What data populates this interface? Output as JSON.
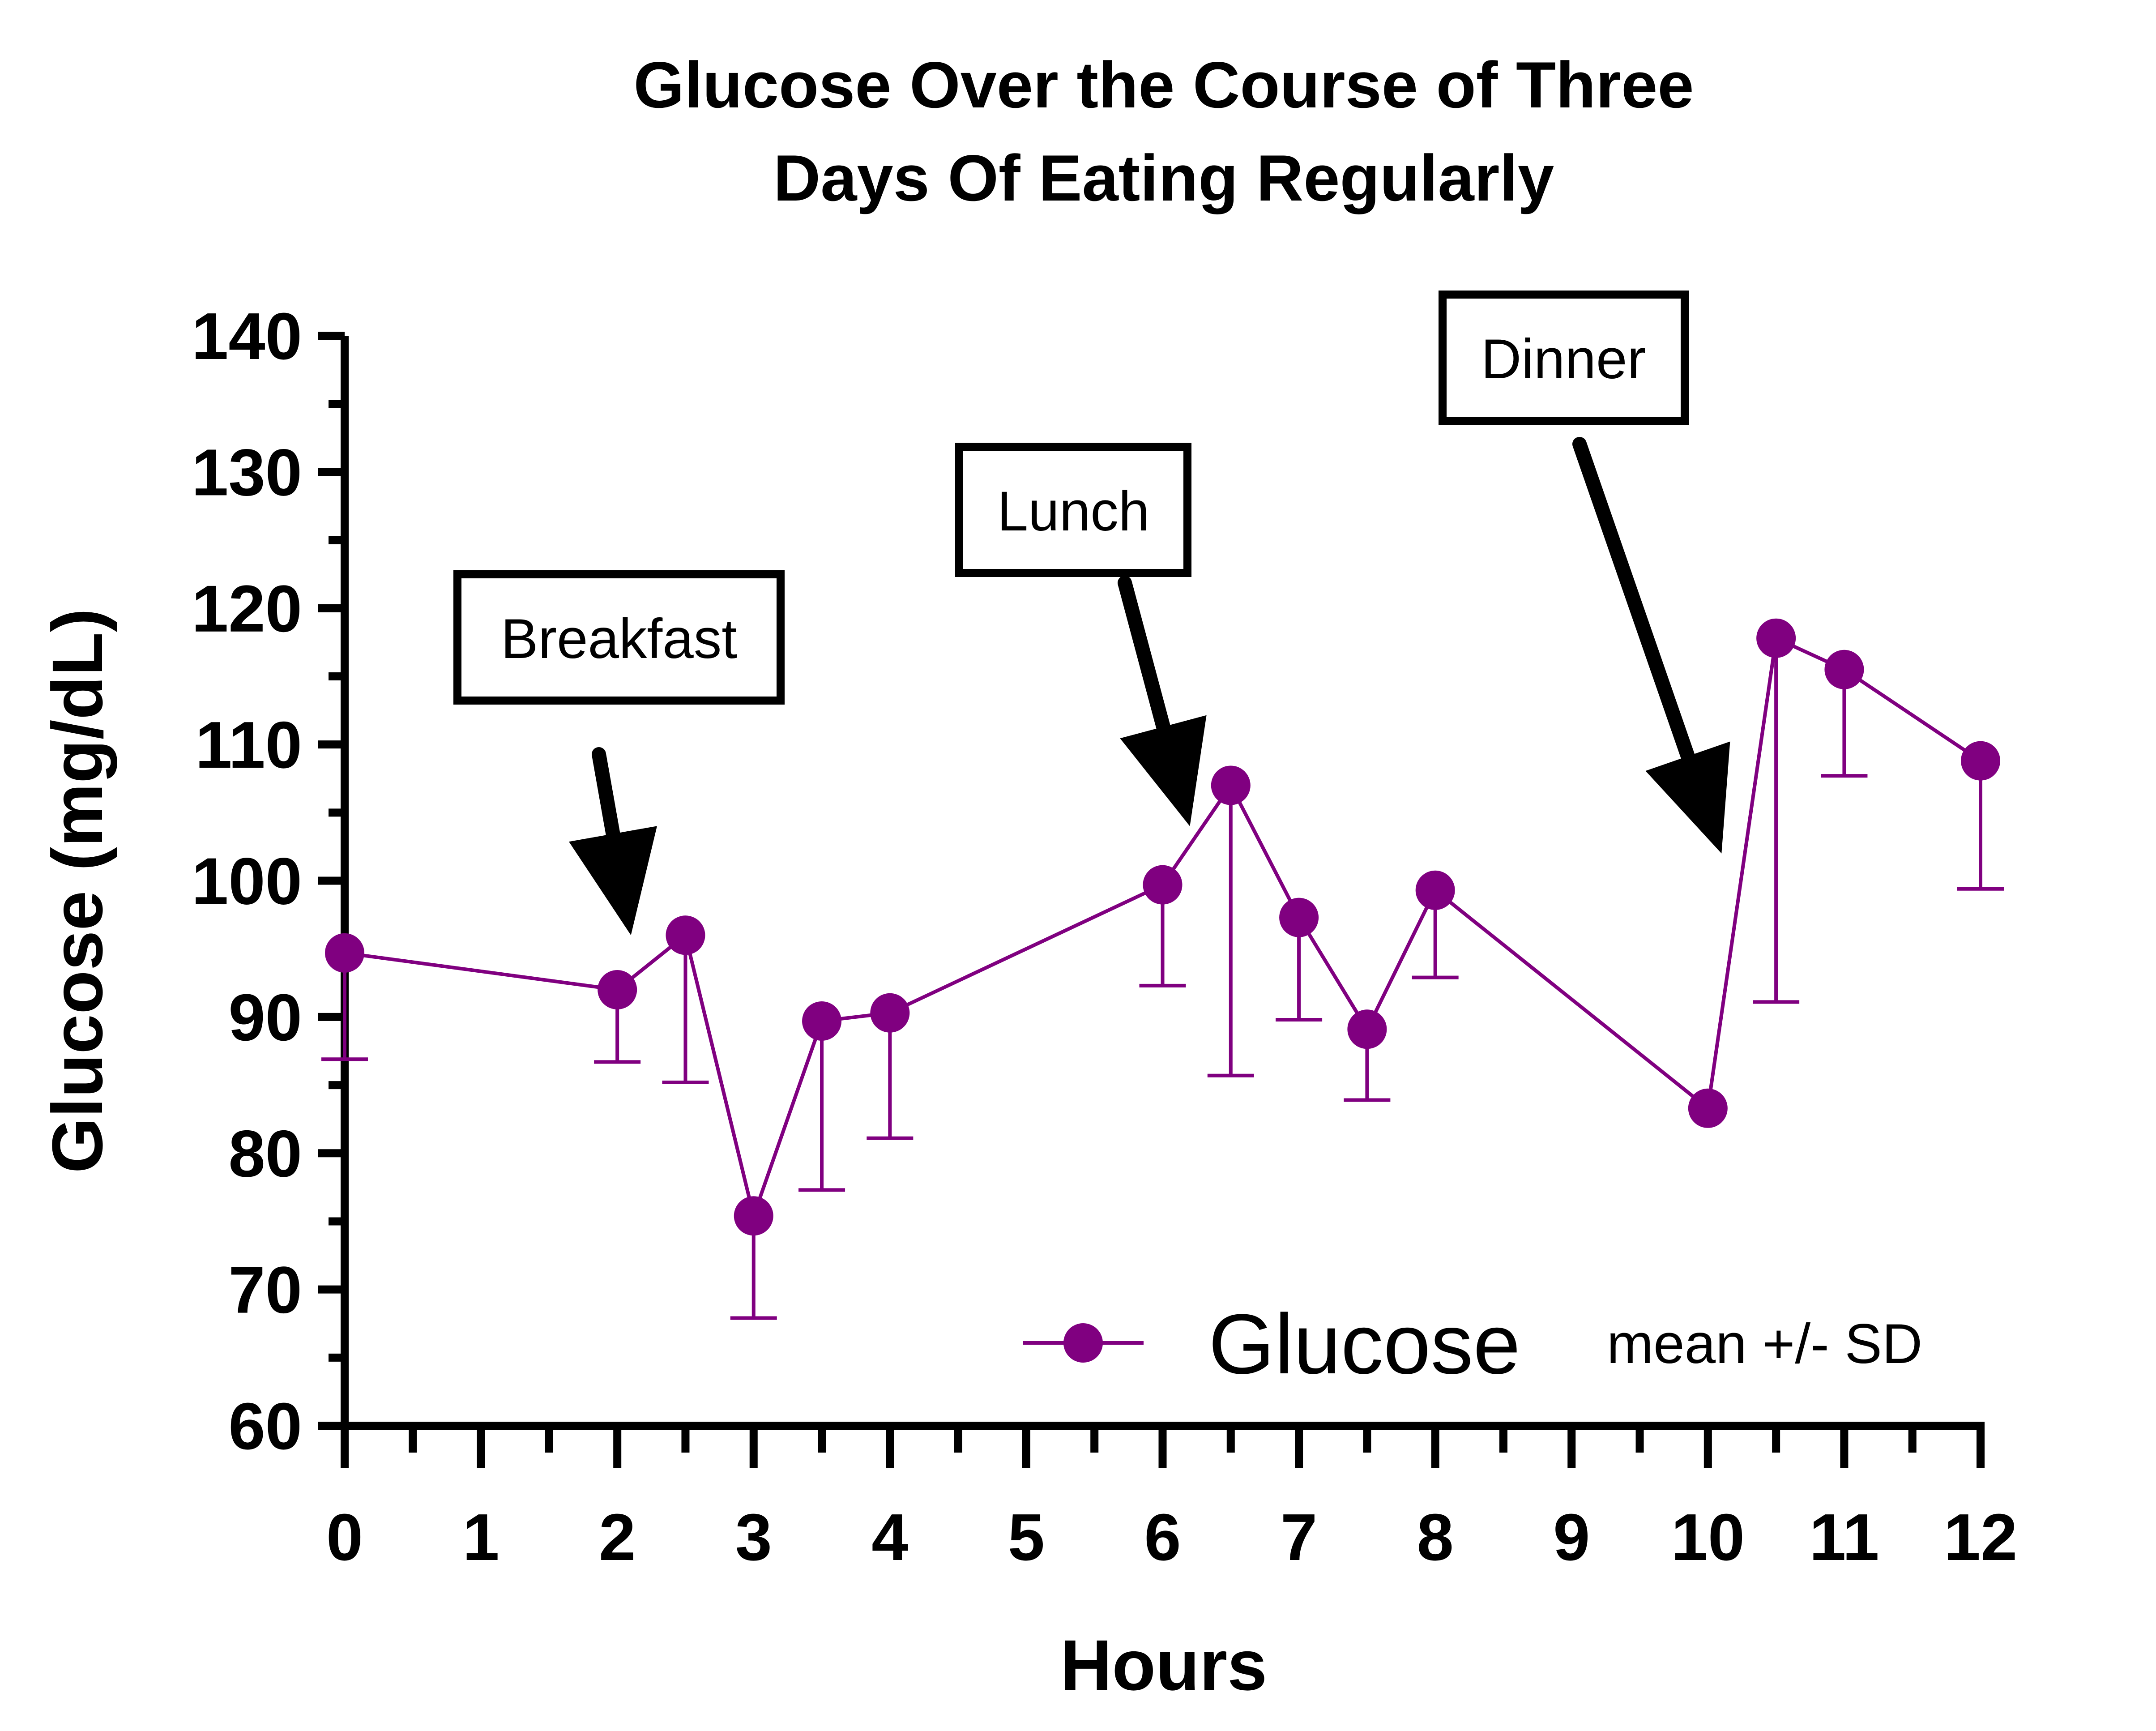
{
  "chart_data": {
    "type": "line",
    "title": [
      "Glucose Over the Course of Three",
      "Days Of Eating Regularly"
    ],
    "xlabel": "Hours",
    "ylabel": "Glucose (mg/dL)",
    "xlim": [
      0,
      12
    ],
    "ylim": [
      60,
      140
    ],
    "x_ticks": [
      "0",
      "1",
      "2",
      "3",
      "4",
      "5",
      "6",
      "7",
      "8",
      "9",
      "10",
      "11",
      "12"
    ],
    "y_ticks": [
      "60",
      "70",
      "80",
      "90",
      "100",
      "110",
      "120",
      "130",
      "140"
    ],
    "grid": false,
    "colors": {
      "series": "#800080",
      "axis": "#000000"
    },
    "series": [
      {
        "name": "Glucose",
        "x": [
          0,
          2,
          2.5,
          3,
          3.5,
          4,
          6,
          6.5,
          7,
          7.5,
          8,
          10,
          10.5,
          11,
          12
        ],
        "y": [
          94.7,
          92.0,
          96.0,
          75.4,
          89.7,
          90.3,
          99.7,
          107.0,
          97.3,
          89.1,
          99.3,
          83.3,
          117.8,
          115.5,
          108.8
        ],
        "sd": [
          7.8,
          5.3,
          10.8,
          7.5,
          12.4,
          9.2,
          7.4,
          21.3,
          7.5,
          5.2,
          6.4,
          null,
          26.7,
          7.8,
          9.4
        ]
      }
    ],
    "legend": {
      "label": "Glucose",
      "note": "mean +/- SD",
      "position": "bottom-right"
    },
    "annotations": [
      {
        "text": "Breakfast",
        "target_x": 2.1,
        "target_y": 96
      },
      {
        "text": "Lunch",
        "target_x": 6.2,
        "target_y": 104
      },
      {
        "text": "Dinner",
        "target_x": 10.1,
        "target_y": 102
      }
    ]
  }
}
